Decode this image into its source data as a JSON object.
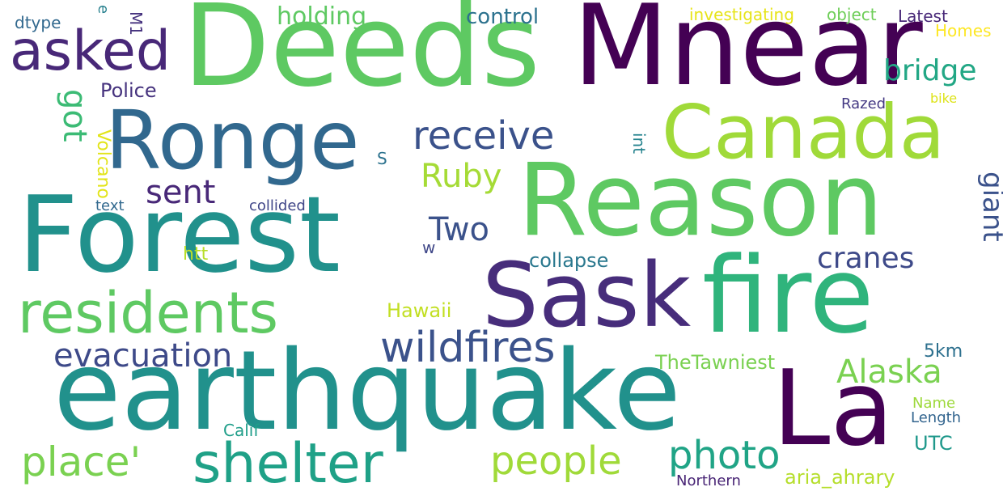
{
  "words": [
    {
      "text": "Deeds",
      "color": "#5ec962"
    },
    {
      "text": "Mnear",
      "color": "#440154"
    },
    {
      "text": "Reason",
      "color": "#5ec962"
    },
    {
      "text": "Forest",
      "color": "#21918c"
    },
    {
      "text": "earthquake",
      "color": "#21918c"
    },
    {
      "text": "fire",
      "color": "#2fb47c"
    },
    {
      "text": "Sask",
      "color": "#472d7b"
    },
    {
      "text": "La",
      "color": "#440154"
    },
    {
      "text": "Canada",
      "color": "#a0da39"
    },
    {
      "text": "Ronge",
      "color": "#31688e"
    },
    {
      "text": "asked",
      "color": "#482878"
    },
    {
      "text": "residents",
      "color": "#5ec962"
    },
    {
      "text": "shelter",
      "color": "#1fa187"
    },
    {
      "text": "wildfires",
      "color": "#3b528b"
    },
    {
      "text": "place'",
      "color": "#7ad151"
    },
    {
      "text": "people",
      "color": "#a0da39"
    },
    {
      "text": "receive",
      "color": "#3b528b"
    },
    {
      "text": "evacuation",
      "color": "#3e4a89"
    },
    {
      "text": "photo",
      "color": "#20a486"
    },
    {
      "text": "Alaska",
      "color": "#7ad151"
    },
    {
      "text": "cranes",
      "color": "#3e4a89"
    },
    {
      "text": "sent",
      "color": "#482878"
    },
    {
      "text": "Two",
      "color": "#3b528b"
    },
    {
      "text": "Ruby",
      "color": "#a5db36"
    },
    {
      "text": "giant",
      "color": "#3b528b"
    },
    {
      "text": "got",
      "color": "#3cbb75"
    },
    {
      "text": "holding",
      "color": "#5ec962"
    },
    {
      "text": "bridge",
      "color": "#22a785"
    },
    {
      "text": "control",
      "color": "#2c728e"
    },
    {
      "text": "collapse",
      "color": "#2a788e"
    },
    {
      "text": "TheTawniest",
      "color": "#7ad151"
    },
    {
      "text": "Hawaii",
      "color": "#c2df23"
    },
    {
      "text": "5km",
      "color": "#2d708e"
    },
    {
      "text": "Police",
      "color": "#46337e"
    },
    {
      "text": "aria_ahrary",
      "color": "#b5de2b"
    },
    {
      "text": "UTC",
      "color": "#1f988b"
    },
    {
      "text": "investigating",
      "color": "#e7e419"
    },
    {
      "text": "object",
      "color": "#6ece58"
    },
    {
      "text": "Latest",
      "color": "#482878"
    },
    {
      "text": "Homes",
      "color": "#fde725"
    },
    {
      "text": "dtype",
      "color": "#31688e"
    },
    {
      "text": "M1",
      "color": "#46327e"
    },
    {
      "text": "e",
      "color": "#27808e"
    },
    {
      "text": "Volcano",
      "color": "#e2e418"
    },
    {
      "text": "int",
      "color": "#25838e"
    },
    {
      "text": "S",
      "color": "#2c728e"
    },
    {
      "text": "htt",
      "color": "#b8de29"
    },
    {
      "text": "w",
      "color": "#3f4788"
    },
    {
      "text": "text",
      "color": "#31688e"
    },
    {
      "text": "collided",
      "color": "#404688"
    },
    {
      "text": "Razed",
      "color": "#443983"
    },
    {
      "text": "bike",
      "color": "#dde318"
    },
    {
      "text": "Name",
      "color": "#9dd93b"
    },
    {
      "text": "Length",
      "color": "#32648e"
    },
    {
      "text": "Calif",
      "color": "#1f9e89"
    },
    {
      "text": "Northern",
      "color": "#482475"
    }
  ]
}
